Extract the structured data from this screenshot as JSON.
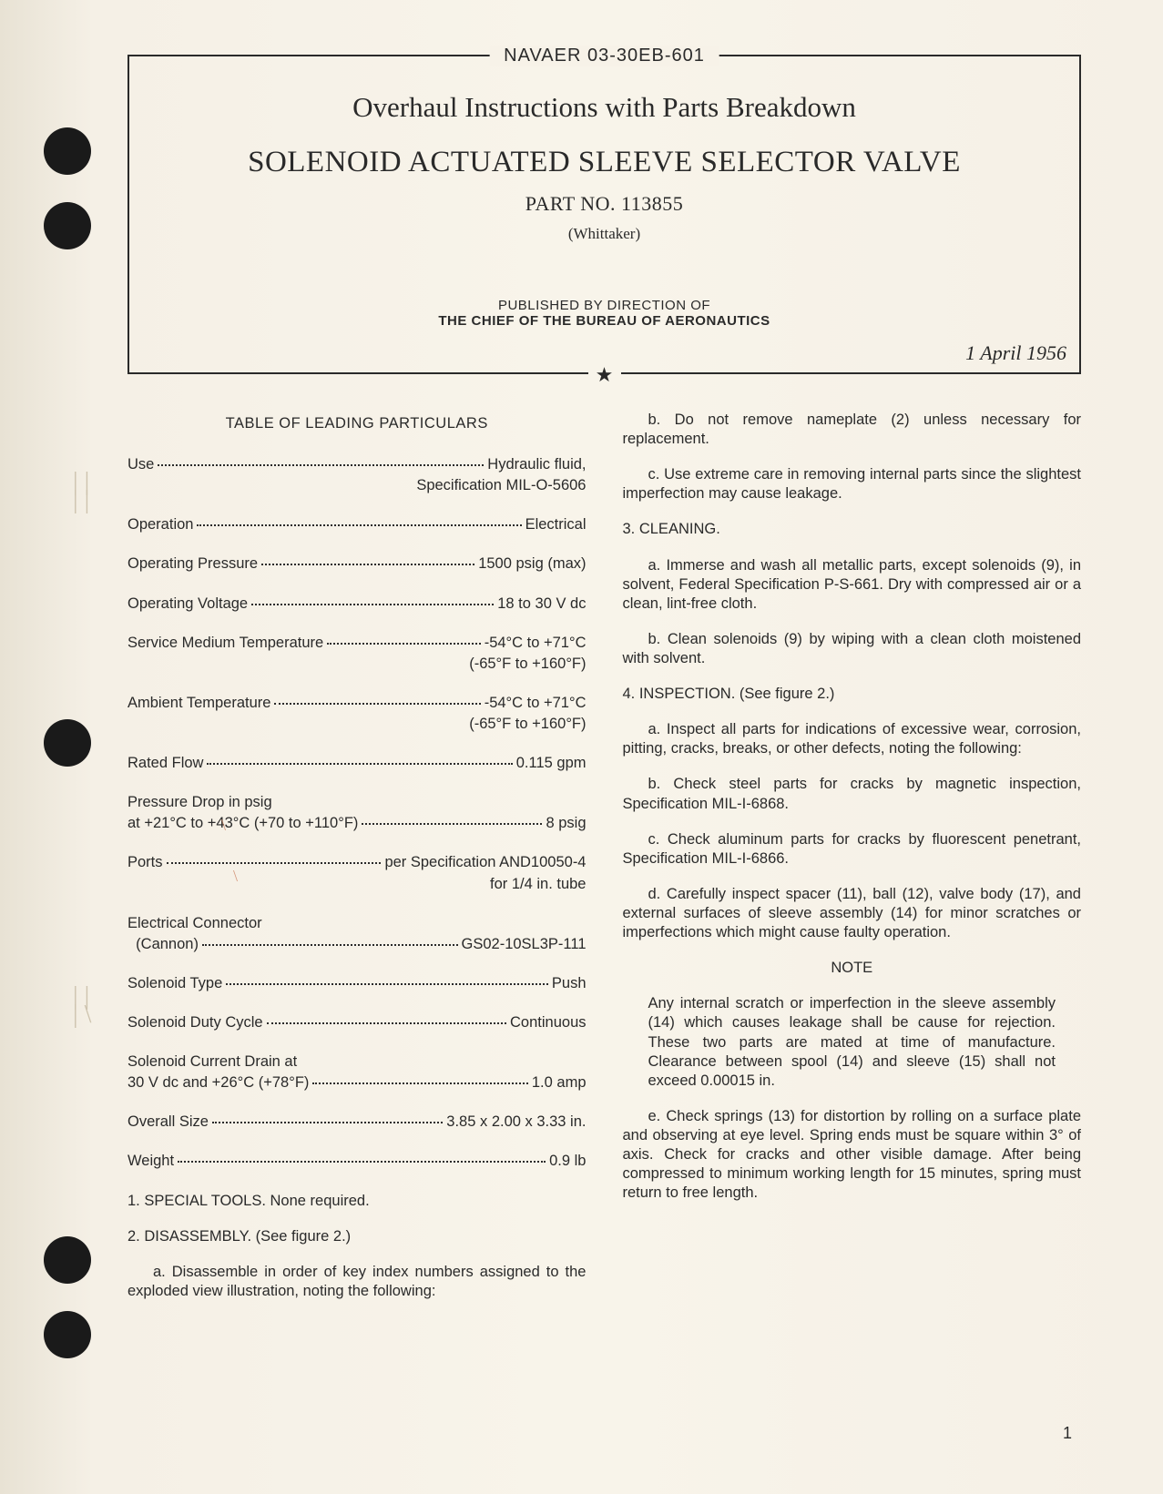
{
  "header": {
    "docnum": "NAVAER 03-30EB-601",
    "title_line1": "Overhaul Instructions with Parts Breakdown",
    "title_line2": "SOLENOID ACTUATED SLEEVE SELECTOR VALVE",
    "part_no": "PART NO. 113855",
    "maker": "(Whittaker)",
    "published1": "PUBLISHED BY DIRECTION OF",
    "published2": "THE CHIEF OF THE BUREAU OF AERONAUTICS",
    "date": "1 April 1956",
    "star": "★"
  },
  "particulars": {
    "title": "TABLE OF LEADING PARTICULARS",
    "rows": [
      {
        "label": "Use",
        "value": "Hydraulic fluid,",
        "sub": "Specification MIL-O-5606"
      },
      {
        "label": "Operation",
        "value": "Electrical"
      },
      {
        "label": "Operating Pressure",
        "value": "1500 psig (max)"
      },
      {
        "label": "Operating Voltage",
        "value": "18 to 30 V dc"
      },
      {
        "label": "Service Medium Temperature",
        "value": "-54°C to +71°C",
        "sub": "(-65°F to +160°F)"
      },
      {
        "label": "Ambient Temperature",
        "value": "-54°C to +71°C",
        "sub": "(-65°F to +160°F)"
      },
      {
        "label": "Rated Flow",
        "value": "0.115 gpm"
      },
      {
        "label": "Pressure Drop in psig",
        "label2": "at +21°C to +43°C (+70 to +110°F)",
        "value": "8 psig",
        "multiline": true
      },
      {
        "label": "Ports",
        "value": "per Specification AND10050-4",
        "sub": "for 1/4 in. tube"
      },
      {
        "label": "Electrical Connector",
        "label2": "  (Cannon)",
        "value": "GS02-10SL3P-111",
        "multiline": true
      },
      {
        "label": "Solenoid Type",
        "value": "Push"
      },
      {
        "label": "Solenoid Duty Cycle",
        "value": "Continuous"
      },
      {
        "label": "Solenoid Current Drain at",
        "label2": "30 V dc and +26°C (+78°F)",
        "value": "1.0 amp",
        "multiline": true
      },
      {
        "label": "Overall Size",
        "value": "3.85 x 2.00 x 3.33 in."
      },
      {
        "label": "Weight",
        "value": "0.9 lb"
      }
    ]
  },
  "left_body": {
    "s1": "1. SPECIAL TOOLS. None required.",
    "s2": "2. DISASSEMBLY. (See figure 2.)",
    "s2a": "a. Disassemble in order of key index numbers assigned to the exploded view illustration, noting the following:"
  },
  "right_body": {
    "s2b": "b. Do not remove nameplate (2) unless necessary for replacement.",
    "s2c": "c. Use extreme care in removing internal parts since the slightest imperfection may cause leakage.",
    "s3": "3. CLEANING.",
    "s3a": "a. Immerse and wash all metallic parts, except solenoids (9), in solvent, Federal Specification P-S-661. Dry with compressed air or a clean, lint-free cloth.",
    "s3b": "b. Clean solenoids (9) by wiping with a clean cloth moistened with solvent.",
    "s4": "4. INSPECTION. (See figure 2.)",
    "s4a": "a. Inspect all parts for indications of excessive wear, corrosion, pitting, cracks, breaks, or other defects, noting the following:",
    "s4b": "b. Check steel parts for cracks by magnetic inspection, Specification MIL-I-6868.",
    "s4c": "c. Check aluminum parts for cracks by fluorescent penetrant, Specification MIL-I-6866.",
    "s4d": "d. Carefully inspect spacer (11), ball (12), valve body (17), and external surfaces of sleeve assembly (14) for minor scratches or imperfections which might cause faulty operation.",
    "note_head": "NOTE",
    "note": "Any internal scratch or imperfection in the sleeve assembly (14) which causes leakage shall be cause for rejection. These two parts are mated at time of manufacture. Clearance between spool (14) and sleeve (15) shall not exceed 0.00015 in.",
    "s4e": "e. Check springs (13) for distortion by rolling on a surface plate and observing at eye level. Spring ends must be square within 3° of axis. Check for cracks and other visible damage. After being compressed to minimum working length for 15 minutes, spring must return to free length."
  },
  "pagenum": "1",
  "style": {
    "page_bg": "#f5f0e6",
    "text_color": "#2a2a2a",
    "hole_color": "#1a1a1a"
  }
}
